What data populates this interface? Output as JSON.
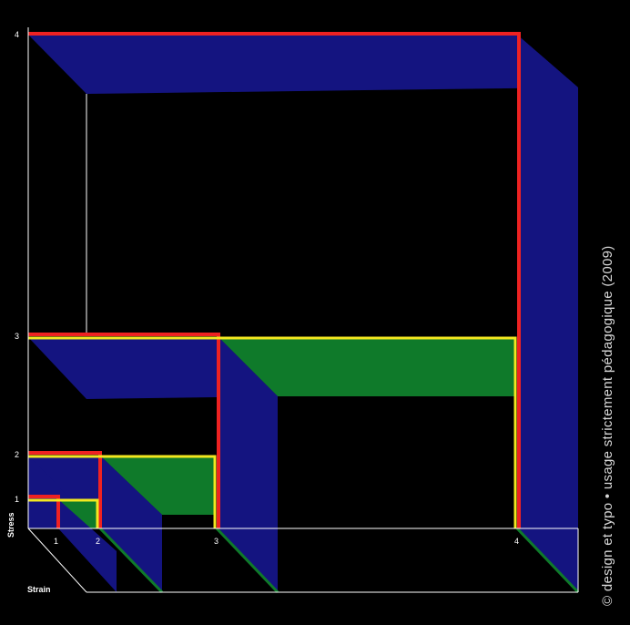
{
  "diagram": {
    "axes": {
      "y_title": "Stress",
      "x_title": "Strain",
      "y_ticks": [
        "1",
        "2",
        "3",
        "4"
      ],
      "x_ticks": [
        "1",
        "2",
        "3",
        "4"
      ]
    },
    "levels": [
      1,
      2,
      3,
      4
    ],
    "credit": "© design et typo • usage strictement pédagogique (2009)",
    "colors": {
      "background": "#000000",
      "blue": "#141480",
      "green": "#0f7a2a",
      "red": "#ee2222",
      "yellow": "#f2e820",
      "axis": "#ffffff"
    }
  }
}
